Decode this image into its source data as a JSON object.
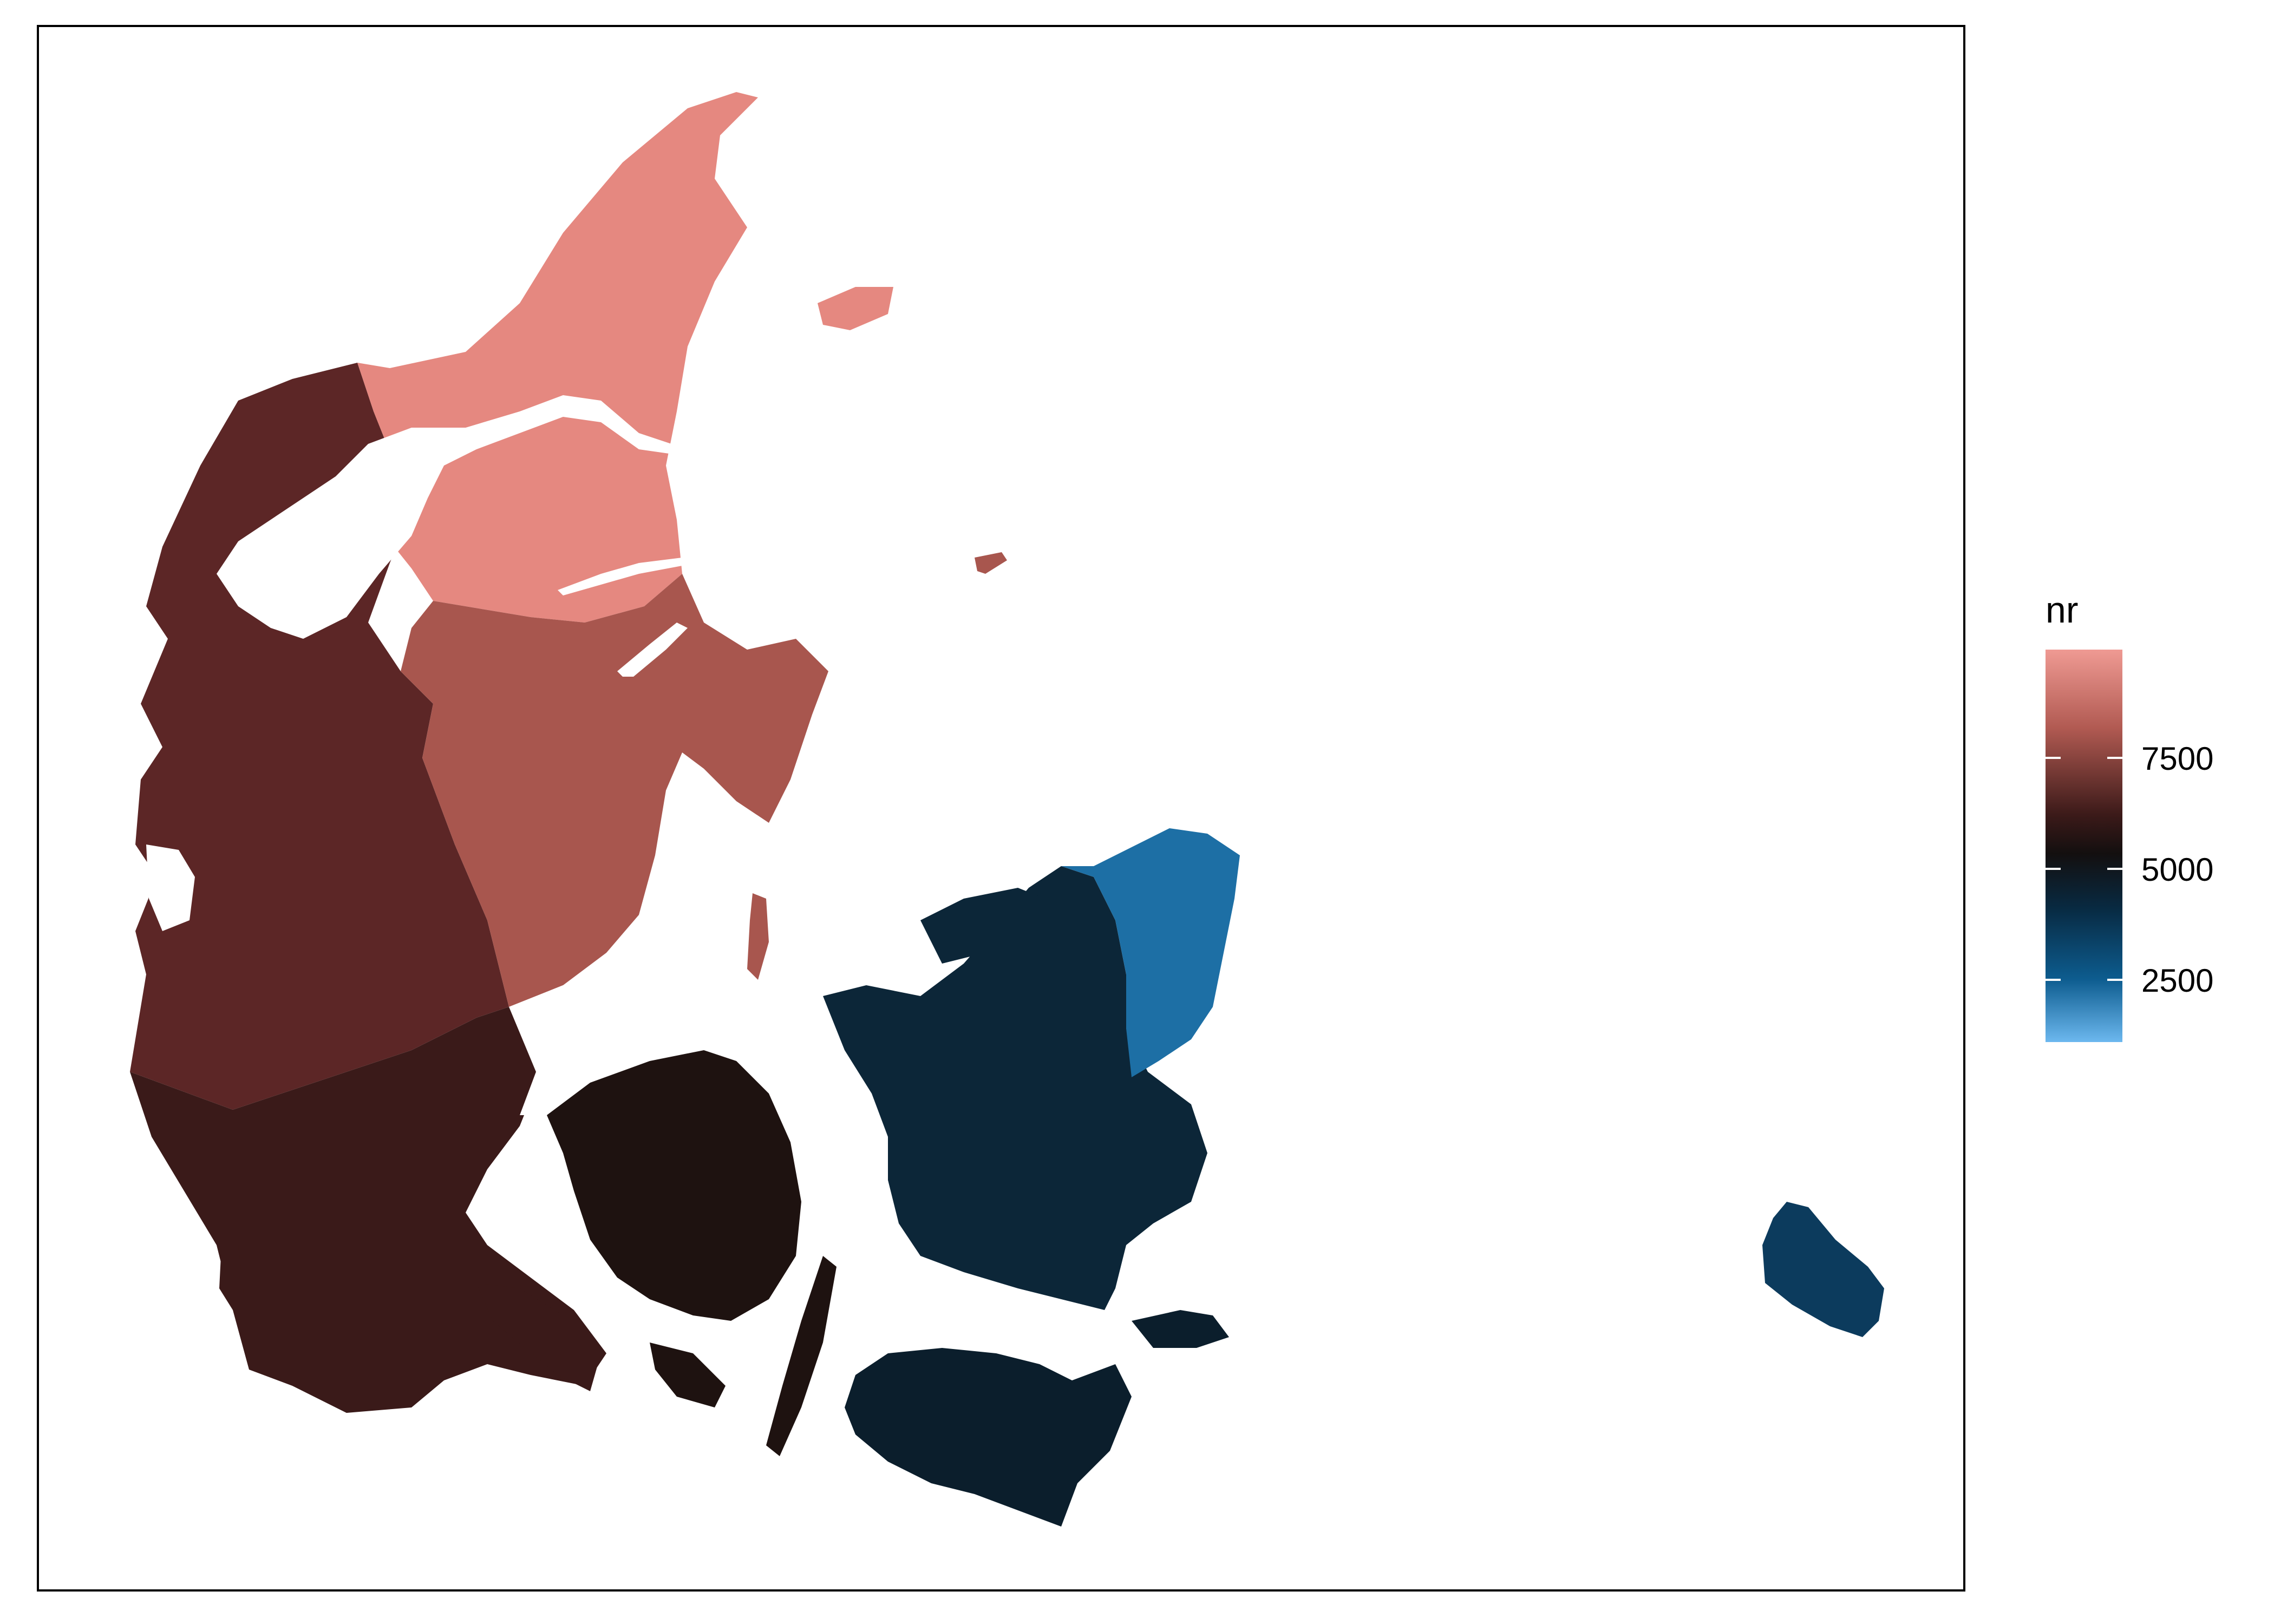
{
  "legend": {
    "title": "nr",
    "breaks": [
      "7500",
      "5000",
      "2500"
    ],
    "gradient_colors": [
      "#ef9a93",
      "#a9514a",
      "#4a1e1c",
      "#1a1010",
      "#072236",
      "#0a4a72",
      "#6cb8ef"
    ]
  },
  "regions": {
    "north_jutland": {
      "color": "#e58880"
    },
    "west_jutland": {
      "color": "#5c2626"
    },
    "east_jutland": {
      "color": "#a8564e"
    },
    "south_jutland": {
      "color": "#3a1a19"
    },
    "funen": {
      "color": "#1e1210"
    },
    "zealand": {
      "color": "#0c2638"
    },
    "copenhagen": {
      "color": "#1d6fa5"
    },
    "lolland_falster": {
      "color": "#0b1e2c"
    },
    "bornholm": {
      "color": "#0c3b5d"
    }
  }
}
